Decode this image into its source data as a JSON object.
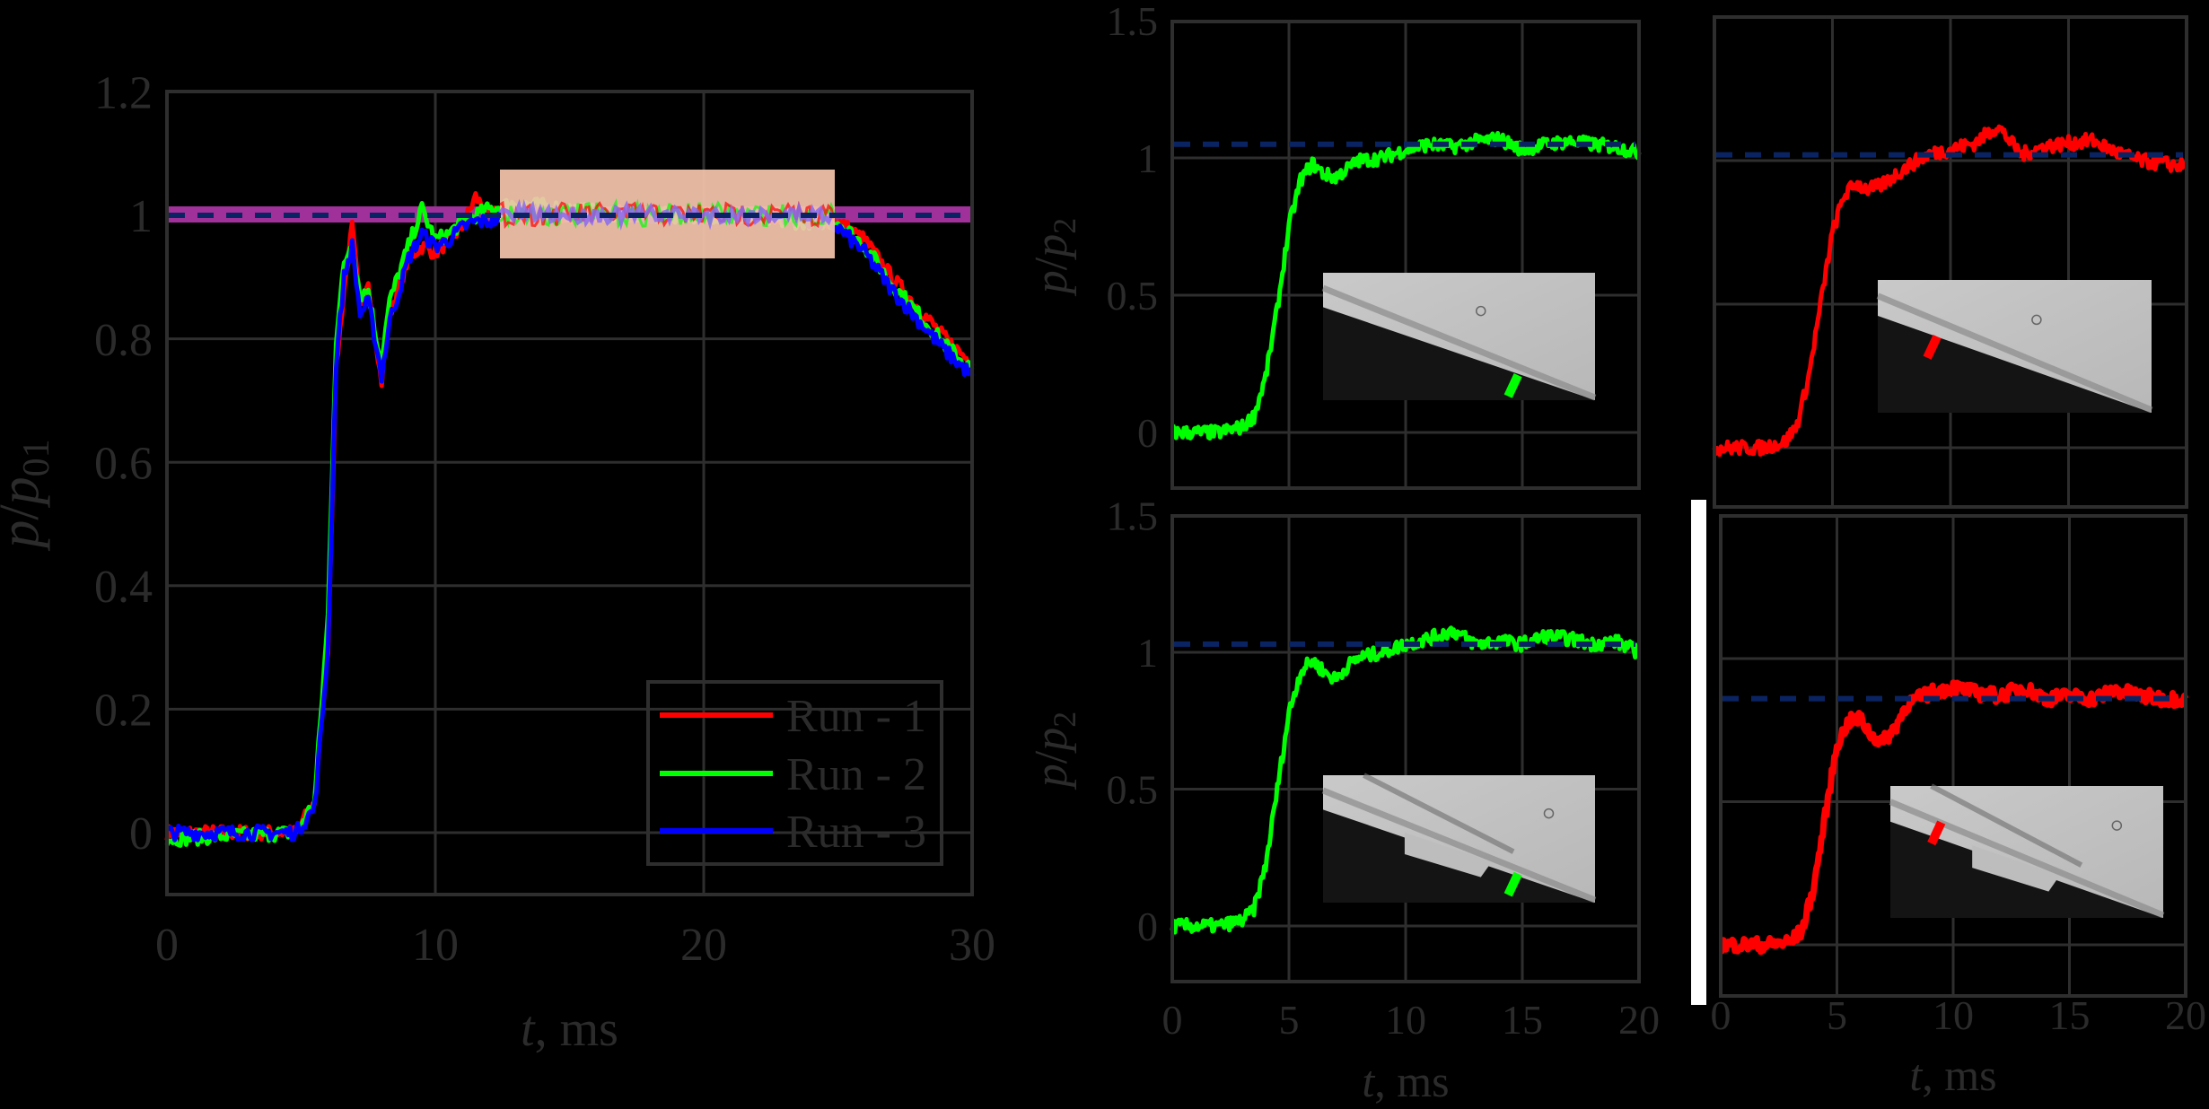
{
  "chart_data": [
    {
      "type": "line",
      "id": "main",
      "title": "",
      "xlabel_italic": "t",
      "xlabel_rest": ", ms",
      "ylabel": "p/p01",
      "xlim": [
        0,
        30
      ],
      "ylim": [
        -0.1,
        1.2
      ],
      "xticks": [
        "0",
        "10",
        "20",
        "30"
      ],
      "yticks": [
        "0",
        "0.2",
        "0.4",
        "0.6",
        "0.8",
        "1",
        "1.2"
      ],
      "grid": true,
      "legend": {
        "position": "lower right",
        "entries": [
          "Run - 1",
          "Run - 2",
          "Run - 3"
        ]
      },
      "reference_line": {
        "y": 1.0,
        "style": "dashed",
        "color": "#0a2463"
      },
      "uncertainty_band": {
        "y_low": 0.985,
        "y_high": 1.01,
        "color": "#a0309a"
      },
      "highlight_window": {
        "x_start": 12.5,
        "x_end": 25,
        "y_low": 0.93,
        "y_high": 1.07,
        "color": "#f5c6ac"
      },
      "series": [
        {
          "name": "Run - 1",
          "color": "#ff0000",
          "x": [
            0,
            4.8,
            5.5,
            6.0,
            6.3,
            6.6,
            6.9,
            7.2,
            7.5,
            7.8,
            8.0,
            8.3,
            8.6,
            9.0,
            9.5,
            10.0,
            10.5,
            11.0,
            11.5,
            12.0,
            13,
            15,
            17,
            19,
            21,
            23,
            25,
            26,
            27,
            28,
            29,
            30
          ],
          "y": [
            0.0,
            0.0,
            0.05,
            0.3,
            0.75,
            0.88,
            0.98,
            0.85,
            0.9,
            0.78,
            0.73,
            0.84,
            0.88,
            0.93,
            0.95,
            0.94,
            0.96,
            0.98,
            1.03,
            1.0,
            1.01,
            1.0,
            1.005,
            1.0,
            1.0,
            1.0,
            0.99,
            0.96,
            0.9,
            0.85,
            0.8,
            0.76
          ]
        },
        {
          "name": "Run - 2",
          "color": "#00ff00",
          "x": [
            0,
            4.8,
            5.5,
            6.0,
            6.3,
            6.6,
            6.9,
            7.2,
            7.5,
            7.8,
            8.0,
            8.3,
            8.6,
            9.0,
            9.5,
            10.0,
            10.5,
            11.0,
            11.5,
            12.0,
            13,
            15,
            17,
            19,
            21,
            23,
            25,
            26,
            27,
            28,
            29,
            30
          ],
          "y": [
            -0.01,
            0.0,
            0.05,
            0.35,
            0.8,
            0.92,
            0.96,
            0.87,
            0.88,
            0.8,
            0.77,
            0.86,
            0.9,
            0.95,
            1.01,
            0.96,
            0.97,
            0.99,
            1.0,
            1.01,
            1.02,
            1.01,
            1.0,
            1.0,
            1.0,
            0.99,
            0.99,
            0.95,
            0.89,
            0.84,
            0.79,
            0.75
          ]
        },
        {
          "name": "Run - 3",
          "color": "#0000ff",
          "x": [
            0,
            4.8,
            5.5,
            6.0,
            6.3,
            6.6,
            6.9,
            7.2,
            7.5,
            7.8,
            8.0,
            8.3,
            8.6,
            9.0,
            9.5,
            10.0,
            10.5,
            11.0,
            11.5,
            12.0,
            13,
            15,
            17,
            19,
            21,
            23,
            25,
            26,
            27,
            28,
            29,
            30
          ],
          "y": [
            0.0,
            0.0,
            0.04,
            0.3,
            0.76,
            0.9,
            0.95,
            0.84,
            0.86,
            0.79,
            0.74,
            0.83,
            0.87,
            0.93,
            0.97,
            0.95,
            0.96,
            0.98,
            0.99,
            0.99,
            1.0,
            1.0,
            1.0,
            1.0,
            1.0,
            1.0,
            0.98,
            0.94,
            0.88,
            0.83,
            0.78,
            0.74
          ]
        }
      ]
    },
    {
      "type": "line",
      "id": "top-middle",
      "xlabel": "",
      "ylabel": "p/p2",
      "xlim": [
        0,
        20
      ],
      "ylim": [
        -0.2,
        1.5
      ],
      "xticks": [],
      "yticks": [
        "0",
        "0.5",
        "1",
        "1.5"
      ],
      "grid": true,
      "reference_line": {
        "y": 1.05,
        "style": "dashed",
        "color": "#0a2463"
      },
      "inset": "schlieren image, green sensor marker near plate edge",
      "series": [
        {
          "name": "trace",
          "color": "#00ff00",
          "x": [
            0,
            2,
            3,
            3.5,
            4,
            4.5,
            5,
            5.5,
            6,
            6.5,
            7,
            7.5,
            8,
            9,
            10,
            11,
            12,
            13,
            14,
            15,
            16,
            17,
            18,
            19,
            20
          ],
          "y": [
            0.0,
            0.0,
            0.02,
            0.06,
            0.2,
            0.45,
            0.75,
            0.92,
            0.98,
            0.94,
            0.93,
            0.96,
            0.99,
            1.0,
            1.03,
            1.05,
            1.04,
            1.06,
            1.07,
            1.03,
            1.05,
            1.06,
            1.05,
            1.04,
            1.02
          ]
        }
      ]
    },
    {
      "type": "line",
      "id": "top-right",
      "xlabel": "",
      "ylabel": "",
      "xlim": [
        0,
        20
      ],
      "ylim": [
        -0.2,
        1.5
      ],
      "xticks": [],
      "yticks": [],
      "grid": true,
      "reference_line": {
        "y": 1.02,
        "style": "dashed",
        "color": "#0a2463"
      },
      "inset": "schlieren image, red sensor marker upstream",
      "series": [
        {
          "name": "trace",
          "color": "#ff0000",
          "x": [
            0,
            2,
            3,
            3.5,
            4,
            4.5,
            5,
            5.5,
            6,
            6.5,
            7,
            7.5,
            8,
            9,
            10,
            11,
            12,
            13,
            14,
            15,
            16,
            17,
            18,
            19,
            20
          ],
          "y": [
            0.0,
            0.0,
            0.02,
            0.08,
            0.25,
            0.5,
            0.75,
            0.88,
            0.92,
            0.9,
            0.91,
            0.94,
            0.97,
            1.02,
            1.04,
            1.06,
            1.12,
            1.02,
            1.05,
            1.06,
            1.07,
            1.03,
            1.0,
            0.99,
            0.98
          ]
        }
      ]
    },
    {
      "type": "line",
      "id": "bottom-middle",
      "xlabel_italic": "t",
      "xlabel_rest": ", ms",
      "ylabel": "p/p2",
      "xlim": [
        0,
        20
      ],
      "ylim": [
        -0.2,
        1.5
      ],
      "xticks": [
        "0",
        "5",
        "10",
        "15",
        "20"
      ],
      "yticks": [
        "0",
        "0.5",
        "1",
        "1.5"
      ],
      "grid": true,
      "reference_line": {
        "y": 1.03,
        "style": "dashed",
        "color": "#0a2463"
      },
      "inset": "schlieren image with separation region, green sensor marker",
      "series": [
        {
          "name": "trace",
          "color": "#00ff00",
          "x": [
            0,
            2,
            3,
            3.5,
            4,
            4.5,
            5,
            5.5,
            6,
            6.5,
            7,
            7.5,
            8,
            9,
            10,
            11,
            12,
            13,
            14,
            15,
            16,
            17,
            18,
            19,
            20
          ],
          "y": [
            0.0,
            0.0,
            0.02,
            0.06,
            0.22,
            0.5,
            0.78,
            0.93,
            0.97,
            0.93,
            0.9,
            0.95,
            0.98,
            1.0,
            1.03,
            1.05,
            1.08,
            1.03,
            1.04,
            1.03,
            1.06,
            1.05,
            1.03,
            1.04,
            1.0
          ]
        }
      ]
    },
    {
      "type": "line",
      "id": "bottom-right",
      "xlabel_italic": "t",
      "xlabel_rest": ", ms",
      "ylabel": "",
      "xlim": [
        0,
        20
      ],
      "ylim": [
        -0.2,
        1.5
      ],
      "xticks": [
        "0",
        "5",
        "10",
        "15",
        "20"
      ],
      "yticks": [],
      "grid": true,
      "reference_line": {
        "y": 0.86,
        "style": "dashed",
        "color": "#0a2463"
      },
      "inset": "schlieren image with separation region, red sensor marker upstream",
      "series": [
        {
          "name": "trace",
          "color": "#ff0000",
          "x": [
            0,
            2,
            3,
            3.5,
            4,
            4.5,
            5,
            5.5,
            6,
            6.5,
            7,
            7.5,
            8,
            8.5,
            9,
            10,
            11,
            12,
            13,
            14,
            15,
            16,
            17,
            18,
            19,
            20
          ],
          "y": [
            0.0,
            0.0,
            0.01,
            0.05,
            0.2,
            0.45,
            0.7,
            0.78,
            0.79,
            0.73,
            0.71,
            0.76,
            0.84,
            0.86,
            0.88,
            0.9,
            0.88,
            0.87,
            0.9,
            0.86,
            0.87,
            0.86,
            0.89,
            0.87,
            0.86,
            0.86
          ]
        }
      ]
    }
  ],
  "labels": {
    "main_ylabel_p": "p",
    "main_ylabel_sub": "01",
    "right_ylabel_p": "p",
    "right_ylabel_sub": "2",
    "slash": "/"
  }
}
